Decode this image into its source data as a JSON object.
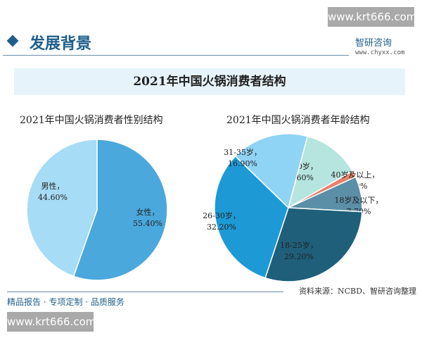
{
  "watermark": "www.krt666.com",
  "header": {
    "section": "发展背景",
    "logo": "智研咨询",
    "url": "www.chyxx.com"
  },
  "banner_title": "2021年中国火锅消费者结构",
  "footer": {
    "source": "资料来源：NCBD、智研咨询整理",
    "slogan": "精品报告 · 专项定制 · 品质服务"
  },
  "chart_data": [
    {
      "type": "pie",
      "title": "2021年中国火锅消费者性别结构",
      "slices": [
        {
          "label": "女性",
          "value": 55.4,
          "display": "55.40%",
          "color": "#4aa8dc"
        },
        {
          "label": "男性",
          "value": 44.6,
          "display": "44.60%",
          "color": "#a6dcf5"
        }
      ]
    },
    {
      "type": "pie",
      "title": "2021年中国火锅消费者年龄结构",
      "slices": [
        {
          "label": "36-40岁",
          "value": 12.6,
          "display": "12.60%",
          "color": "#b5e5de"
        },
        {
          "label": "40岁及以上",
          "value": 1.4,
          "display": "1.40%",
          "color": "#e8806a"
        },
        {
          "label": "18岁及以下",
          "value": 7.7,
          "display": "7.70%",
          "color": "#5b8fa8"
        },
        {
          "label": "18-25岁",
          "value": 29.2,
          "display": "29.20%",
          "color": "#1f5f7a"
        },
        {
          "label": "26-30岁",
          "value": 32.2,
          "display": "32.20%",
          "color": "#1d9ad6"
        },
        {
          "label": "31-35岁",
          "value": 16.9,
          "display": "16.90%",
          "color": "#8fd3f5"
        }
      ]
    }
  ]
}
